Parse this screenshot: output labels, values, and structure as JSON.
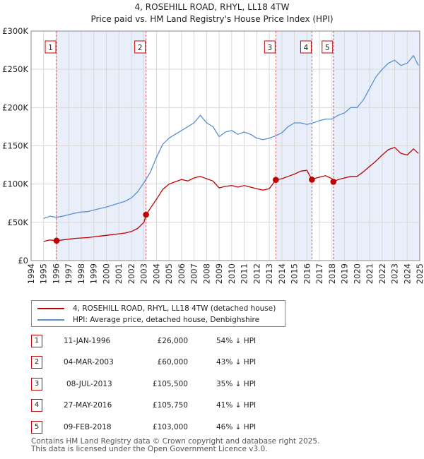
{
  "title": {
    "line1": "4, ROSEHILL ROAD, RHYL, LL18 4TW",
    "line2": "Price paid vs. HM Land Registry's House Price Index (HPI)"
  },
  "colors": {
    "price_line": "#c00000",
    "hpi_line": "#5b8fd0",
    "shade": "#e8eefa",
    "marker_line": "#e06060",
    "grid": "#d8d8d8"
  },
  "legend": {
    "price_label": "4, ROSEHILL ROAD, RHYL, LL18 4TW (detached house)",
    "hpi_label": "HPI: Average price, detached house, Denbighshire"
  },
  "sales": [
    {
      "num": "1",
      "date": "11-JAN-1996",
      "price": "£26,000",
      "hpi": "54% ↓ HPI"
    },
    {
      "num": "2",
      "date": "04-MAR-2003",
      "price": "£60,000",
      "hpi": "43% ↓ HPI"
    },
    {
      "num": "3",
      "date": "08-JUL-2013",
      "price": "£105,500",
      "hpi": "35% ↓ HPI"
    },
    {
      "num": "4",
      "date": "27-MAY-2016",
      "price": "£105,750",
      "hpi": "41% ↓ HPI"
    },
    {
      "num": "5",
      "date": "09-FEB-2018",
      "price": "£103,000",
      "hpi": "46% ↓ HPI"
    }
  ],
  "footer": {
    "line1": "Contains HM Land Registry data © Crown copyright and database right 2025.",
    "line2": "This data is licensed under the Open Government Licence v3.0."
  },
  "chart_data": {
    "type": "line",
    "xlim": [
      1994,
      2025
    ],
    "ylim": [
      0,
      300000
    ],
    "y_ticks": [
      0,
      50000,
      100000,
      150000,
      200000,
      250000,
      300000
    ],
    "y_tick_labels": [
      "£0",
      "£50K",
      "£100K",
      "£150K",
      "£200K",
      "£250K",
      "£300K"
    ],
    "x_ticks": [
      1994,
      1995,
      1996,
      1997,
      1998,
      1999,
      2000,
      2001,
      2002,
      2003,
      2004,
      2005,
      2006,
      2007,
      2008,
      2009,
      2010,
      2011,
      2012,
      2013,
      2014,
      2015,
      2016,
      2017,
      2018,
      2019,
      2020,
      2021,
      2022,
      2023,
      2024,
      2025
    ],
    "grid": true,
    "shaded_ranges": [
      [
        1996.03,
        2003.17
      ],
      [
        2013.52,
        2016.4
      ],
      [
        2018.11,
        2025
      ]
    ],
    "sale_markers": [
      {
        "label": "1",
        "x": 1996.03,
        "y": 26000
      },
      {
        "label": "2",
        "x": 2003.17,
        "y": 60000
      },
      {
        "label": "3",
        "x": 2013.52,
        "y": 105500
      },
      {
        "label": "4",
        "x": 2016.4,
        "y": 105750
      },
      {
        "label": "5",
        "x": 2018.11,
        "y": 103000
      }
    ],
    "series": [
      {
        "name": "HPI: Average price, detached house, Denbighshire",
        "x": [
          1995.0,
          1995.5,
          1996.0,
          1996.5,
          1997.0,
          1997.5,
          1998.0,
          1998.5,
          1999.0,
          1999.5,
          2000.0,
          2000.5,
          2001.0,
          2001.5,
          2002.0,
          2002.5,
          2003.0,
          2003.5,
          2004.0,
          2004.5,
          2005.0,
          2005.5,
          2006.0,
          2006.5,
          2007.0,
          2007.5,
          2008.0,
          2008.5,
          2009.0,
          2009.5,
          2010.0,
          2010.5,
          2011.0,
          2011.5,
          2012.0,
          2012.5,
          2013.0,
          2013.5,
          2014.0,
          2014.5,
          2015.0,
          2015.5,
          2016.0,
          2016.5,
          2017.0,
          2017.5,
          2018.0,
          2018.5,
          2019.0,
          2019.5,
          2020.0,
          2020.5,
          2021.0,
          2021.5,
          2022.0,
          2022.5,
          2023.0,
          2023.5,
          2024.0,
          2024.5,
          2024.9
        ],
        "y": [
          55000,
          58000,
          56500,
          58000,
          60000,
          62000,
          63500,
          64000,
          66000,
          68000,
          70000,
          72500,
          75000,
          77500,
          82000,
          90000,
          102000,
          115000,
          135000,
          152000,
          160000,
          165000,
          170000,
          175000,
          180000,
          190000,
          180000,
          175000,
          162000,
          168000,
          170000,
          165000,
          168000,
          165000,
          160000,
          158000,
          160000,
          163000,
          167000,
          175000,
          180000,
          180000,
          178000,
          180000,
          183000,
          185000,
          185000,
          190000,
          193000,
          200000,
          200000,
          210000,
          225000,
          240000,
          250000,
          258000,
          262000,
          255000,
          258000,
          268000,
          255000
        ]
      },
      {
        "name": "4, ROSEHILL ROAD, RHYL, LL18 4TW (detached house)",
        "x": [
          1995.0,
          1995.5,
          1996.03,
          1996.5,
          1997.0,
          1997.5,
          1998.0,
          1998.5,
          1999.0,
          1999.5,
          2000.0,
          2000.5,
          2001.0,
          2001.5,
          2002.0,
          2002.5,
          2003.0,
          2003.17,
          2003.5,
          2004.0,
          2004.5,
          2005.0,
          2005.5,
          2006.0,
          2006.5,
          2007.0,
          2007.5,
          2008.0,
          2008.5,
          2009.0,
          2009.5,
          2010.0,
          2010.5,
          2011.0,
          2011.5,
          2012.0,
          2012.5,
          2013.0,
          2013.52,
          2014.0,
          2014.5,
          2015.0,
          2015.5,
          2016.0,
          2016.4,
          2016.5,
          2017.0,
          2017.5,
          2018.0,
          2018.11,
          2018.5,
          2019.0,
          2019.5,
          2020.0,
          2020.5,
          2021.0,
          2021.5,
          2022.0,
          2022.5,
          2023.0,
          2023.5,
          2024.0,
          2024.5,
          2024.9
        ],
        "y": [
          25000,
          27000,
          26000,
          27000,
          28000,
          29000,
          29500,
          30000,
          31000,
          32000,
          33000,
          34000,
          35000,
          36000,
          38000,
          42000,
          50000,
          60000,
          68000,
          80000,
          93000,
          100000,
          103000,
          106000,
          104000,
          108000,
          110000,
          107000,
          104000,
          95000,
          97000,
          98000,
          96000,
          98000,
          96000,
          94000,
          92000,
          94000,
          105500,
          107000,
          110000,
          113000,
          117000,
          118000,
          105750,
          107000,
          109000,
          111000,
          107000,
          103000,
          106000,
          108000,
          110000,
          110000,
          116000,
          123000,
          130000,
          138000,
          145000,
          148000,
          140000,
          138000,
          146000,
          140000
        ]
      }
    ]
  }
}
